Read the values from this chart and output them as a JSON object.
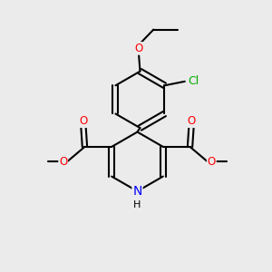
{
  "background_color": "#ebebeb",
  "atom_colors": {
    "O": "#ff0000",
    "N": "#0000ff",
    "Cl": "#00aa00",
    "C": "#000000",
    "H": "#000000"
  },
  "bond_color": "#000000",
  "bond_width": 1.5,
  "font_size_atom": 8.5,
  "figsize": [
    3.0,
    3.0
  ],
  "dpi": 100
}
